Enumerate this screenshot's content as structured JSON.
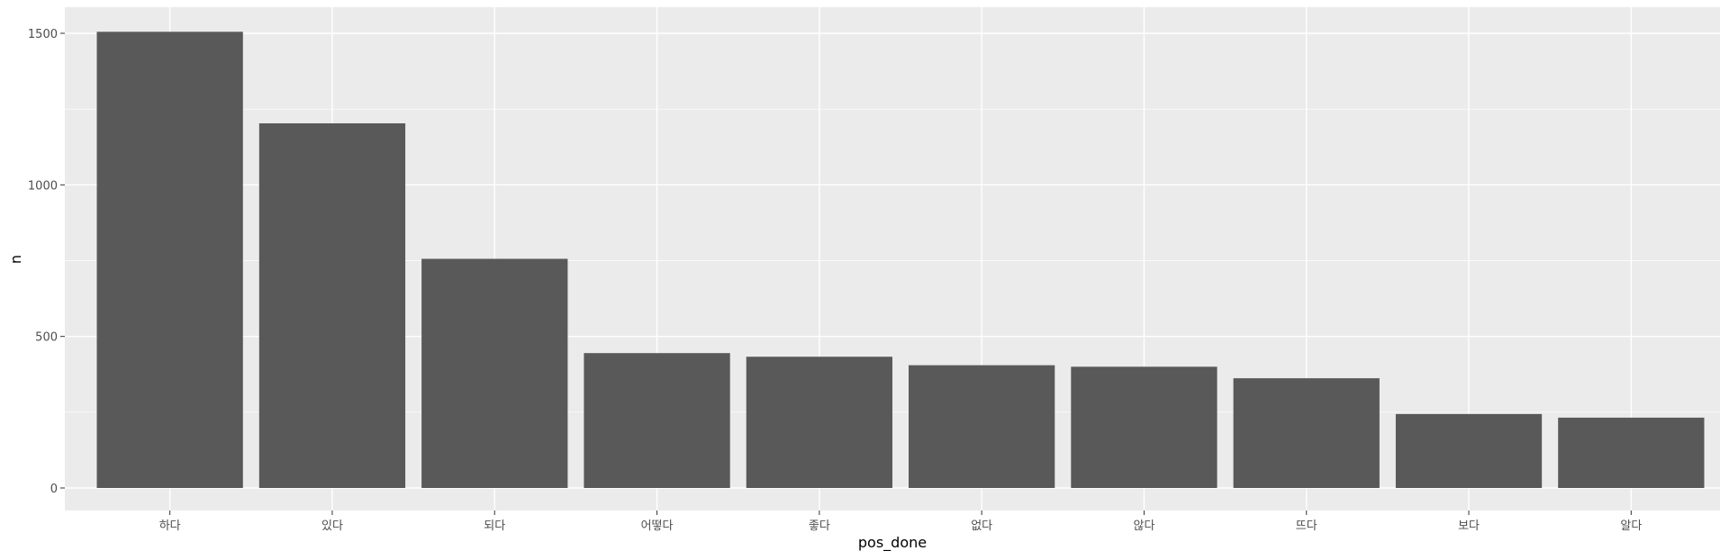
{
  "chart_data": {
    "type": "bar",
    "title": "",
    "xlabel": "pos_done",
    "ylabel": "n",
    "categories": [
      "하다",
      "있다",
      "되다",
      "어떻다",
      "좋다",
      "없다",
      "않다",
      "뜨다",
      "보다",
      "알다"
    ],
    "values": [
      1505,
      1203,
      756,
      445,
      433,
      405,
      400,
      362,
      244,
      232
    ],
    "ylim": [
      0,
      1580
    ],
    "yticks": [
      0,
      500,
      1000,
      1500
    ],
    "ytick_labels": [
      "0",
      "500",
      "1000",
      "1500"
    ],
    "grid": true,
    "legend": "none",
    "colors": {
      "panel": "#ebebeb",
      "grid": "#ffffff",
      "bar": "#595959"
    }
  }
}
